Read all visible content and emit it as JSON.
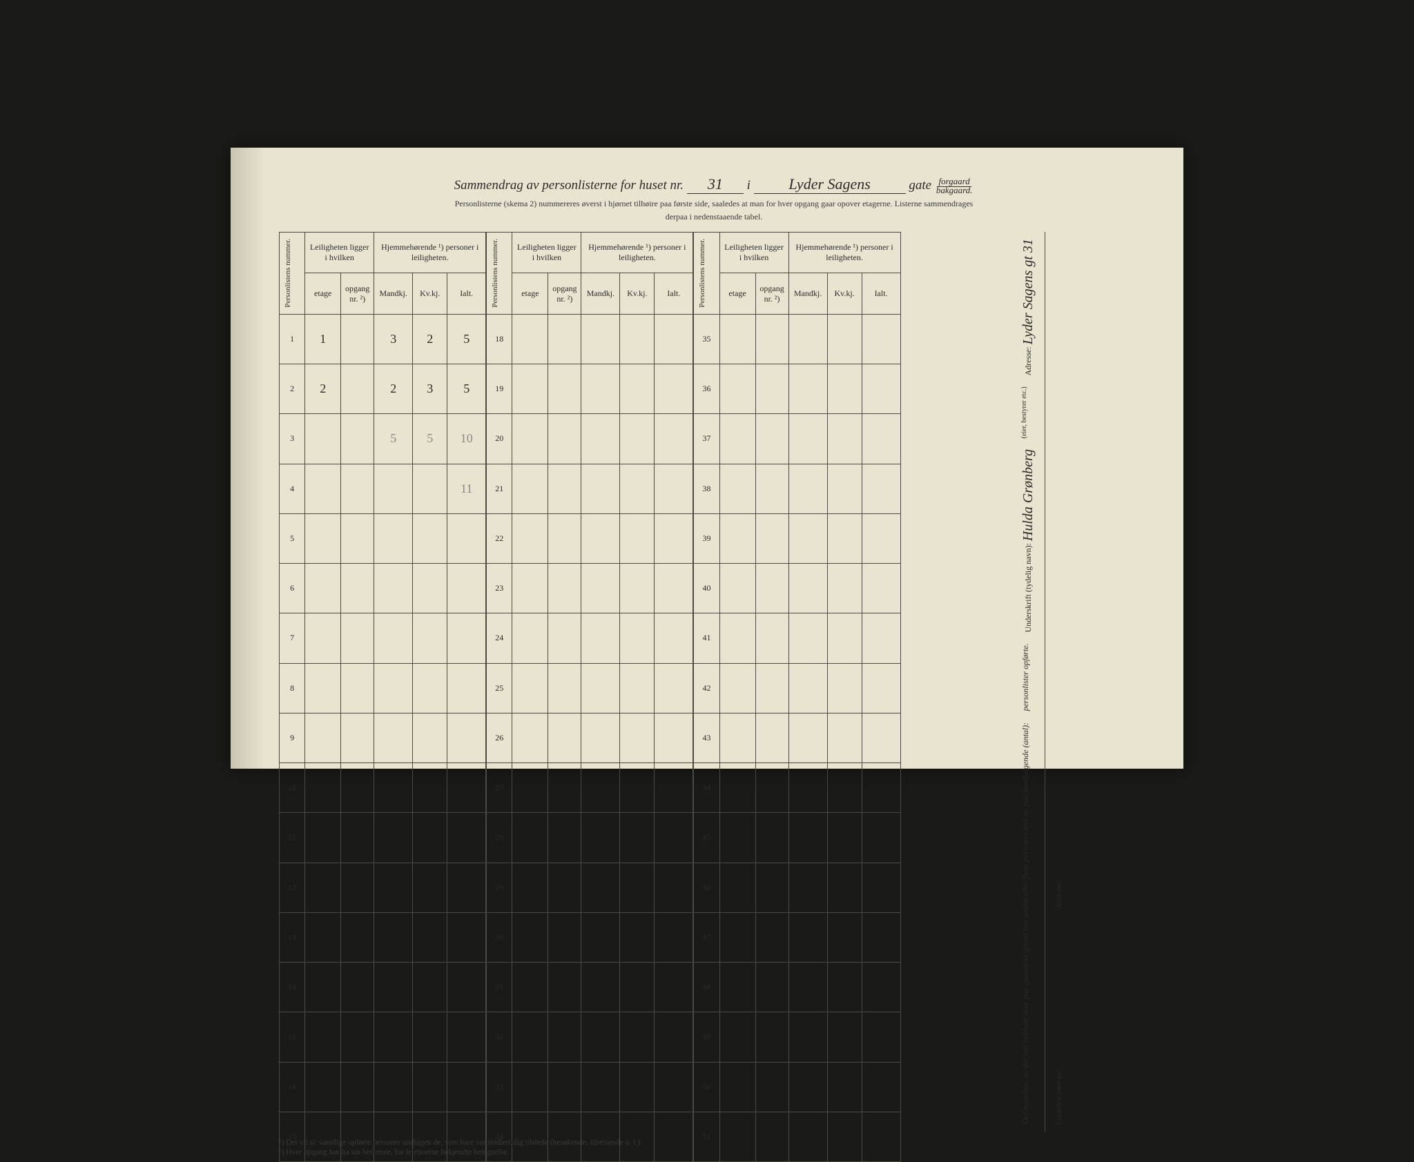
{
  "title": {
    "prefix": "Sammendrag av personlisterne for huset nr.",
    "house_nr": "31",
    "i": "i",
    "street": "Lyder Sagens",
    "gate": "gate",
    "forgaard": "forgaard",
    "bakgaard": "bakgaard."
  },
  "subtitle1": "Personlisterne (skema 2) nummereres øverst i hjørnet tilhøire paa første side, saaledes at man for hver opgang gaar opover etagerne.   Listerne sammendrages",
  "subtitle2": "derpaa i nedenstaaende tabel.",
  "headers": {
    "personlistens_nummer": "Personlistens nummer.",
    "leiligheten": "Leiligheten ligger i hvilken",
    "hjemme": "Hjemmehørende ¹) personer i leiligheten.",
    "etage": "etage",
    "opgang": "opgang nr. ²)",
    "mandkj": "Mandkj.",
    "kvkj": "Kv.kj.",
    "ialt": "Ialt."
  },
  "rows1": [
    {
      "n": "1",
      "etage": "1",
      "opg": "",
      "mk": "3",
      "kv": "2",
      "ialt": "5"
    },
    {
      "n": "2",
      "etage": "2",
      "opg": "",
      "mk": "2",
      "kv": "3",
      "ialt": "5"
    },
    {
      "n": "3",
      "etage": "",
      "opg": "",
      "mk": "5",
      "kv": "5",
      "ialt": "10"
    },
    {
      "n": "4",
      "etage": "",
      "opg": "",
      "mk": "",
      "kv": "",
      "ialt": "11"
    },
    {
      "n": "5"
    },
    {
      "n": "6"
    },
    {
      "n": "7"
    },
    {
      "n": "8"
    },
    {
      "n": "9"
    },
    {
      "n": "10"
    },
    {
      "n": "11"
    },
    {
      "n": "12"
    },
    {
      "n": "13"
    },
    {
      "n": "14"
    },
    {
      "n": "15"
    },
    {
      "n": "16"
    },
    {
      "n": "17"
    }
  ],
  "rows2": [
    {
      "n": "18"
    },
    {
      "n": "19"
    },
    {
      "n": "20"
    },
    {
      "n": "21"
    },
    {
      "n": "22"
    },
    {
      "n": "23"
    },
    {
      "n": "24"
    },
    {
      "n": "25"
    },
    {
      "n": "26"
    },
    {
      "n": "27"
    },
    {
      "n": "28"
    },
    {
      "n": "29"
    },
    {
      "n": "30"
    },
    {
      "n": "31"
    },
    {
      "n": "32"
    },
    {
      "n": "33"
    },
    {
      "n": "34"
    }
  ],
  "rows3": [
    {
      "n": "35"
    },
    {
      "n": "36"
    },
    {
      "n": "37"
    },
    {
      "n": "38"
    },
    {
      "n": "39"
    },
    {
      "n": "40"
    },
    {
      "n": "41"
    },
    {
      "n": "42"
    },
    {
      "n": "43"
    },
    {
      "n": "44"
    },
    {
      "n": "45"
    },
    {
      "n": "46"
    },
    {
      "n": "47"
    },
    {
      "n": "48"
    },
    {
      "n": "49"
    },
    {
      "n": "50"
    },
    {
      "n": "51"
    }
  ],
  "footnote1": "¹) Det vil si: samtlige opførte personer undtagen de, som bare var midlertidig tilstede (besøkende, tilreisende o. l.).",
  "footnote2": "²) Hver opgang bør ha sin bestemte, for leieboerne bekjendte betegnelse.",
  "sidebar": {
    "bevidnes": "Det bevidnes, at der mit vidende ikke paa gaardens grund bor andre eller flere personer end de paa medfølgende (antal):",
    "personlister": "personlister opførte.",
    "underskrift_label": "Underskrift (tydelig navn):",
    "underskrift_value": "Hulda Grønberg",
    "eier": "(eier, bestyrer etc.)",
    "adresse_label": "Adresse:",
    "adresse_value": "Lyder Sagens gt 31",
    "gaarden": "Gaarden eies av:",
    "adresse2": "Adresse:"
  }
}
